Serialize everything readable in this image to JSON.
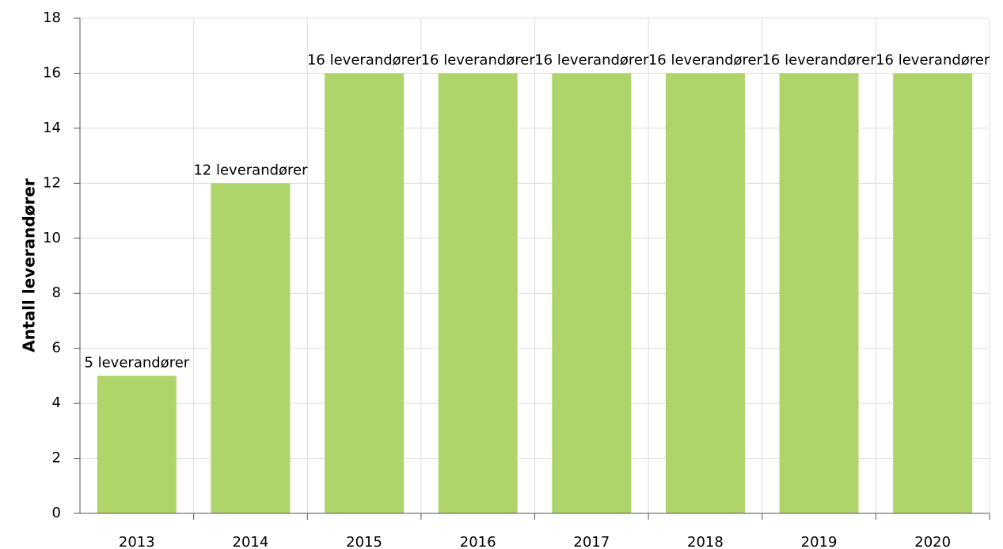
{
  "chart_data": {
    "type": "bar",
    "y_label": "Antall leverandører",
    "categories": [
      "2013",
      "2014",
      "2015",
      "2016",
      "2017",
      "2018",
      "2019",
      "2020"
    ],
    "values": [
      5,
      12,
      16,
      16,
      16,
      16,
      16,
      16
    ],
    "value_labels": [
      "5 leverandører",
      "12 leverandører",
      "16 leverandører",
      "16 leverandører",
      "16 leverandører",
      "16 leverandører",
      "16 leverandører",
      "16 leverandører"
    ],
    "color": "#aed46a",
    "ylim": [
      0,
      18
    ],
    "yticks": [
      0,
      2,
      4,
      6,
      8,
      10,
      12,
      14,
      16,
      18
    ],
    "grid": true
  }
}
